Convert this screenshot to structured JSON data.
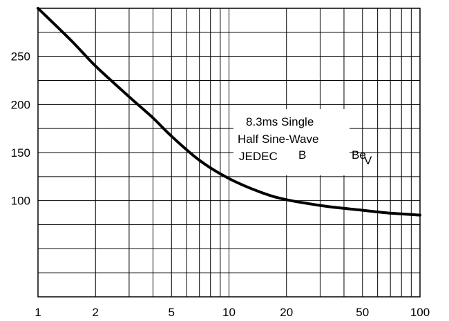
{
  "chart_data": {
    "type": "line",
    "title": "",
    "xlabel": "",
    "ylabel": "",
    "x_scale": "log",
    "xlim": [
      1,
      100
    ],
    "ylim": [
      0,
      300
    ],
    "grid": true,
    "x_ticks": [
      1,
      2,
      5,
      10,
      20,
      50,
      100
    ],
    "x_tick_labels": [
      "1",
      "2",
      "5",
      "10",
      "20",
      "50",
      "100"
    ],
    "y_ticks": [
      100,
      150,
      200,
      250
    ],
    "y_tick_labels": [
      "100",
      "150",
      "200",
      "250"
    ],
    "series": [
      {
        "name": "",
        "x": [
          1,
          1.5,
          2,
          3,
          4,
          5,
          7,
          10,
          15,
          20,
          30,
          40,
          50,
          70,
          100
        ],
        "y": [
          300,
          266,
          240,
          208,
          186,
          167,
          142,
          123,
          108,
          101,
          95,
          92,
          90,
          87,
          85
        ],
        "color": "#000000"
      }
    ],
    "annotations": {
      "line1": "8.3ms Single",
      "line2": "Half Sine-Wave",
      "line3": "JEDEC",
      "mark_b": "B",
      "mark_be": "Be",
      "mark_v": "V"
    }
  }
}
